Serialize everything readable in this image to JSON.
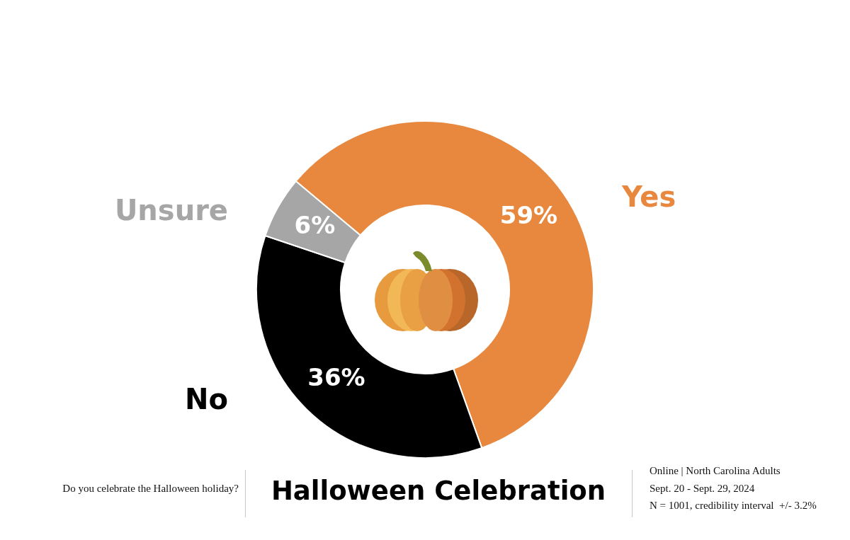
{
  "chart_data": {
    "type": "donut",
    "title": "Halloween Celebration",
    "subtitle": "Do you celebrate the Halloween holiday?",
    "categories": [
      "Yes",
      "No",
      "Unsure"
    ],
    "values": [
      59,
      36,
      6
    ],
    "colors": [
      "#e8883f",
      "#000000",
      "#a6a6a6"
    ],
    "value_labels": [
      "59%",
      "36%",
      "6%"
    ],
    "annotations": [
      "Online | North Carolina Adults",
      "Sept. 20 - Sept. 29, 2024",
      "N = 1001, credibility interval  +/- 3.2%"
    ]
  }
}
